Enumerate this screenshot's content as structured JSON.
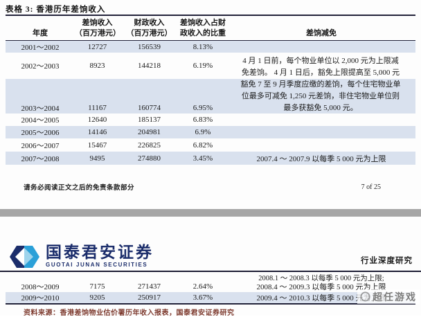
{
  "colors": {
    "shaded": "#d9e1ee",
    "band": "#a6a6a6",
    "navy": "#1b2d6b",
    "lightblue": "#2aa0d8",
    "maroon": "#7e3b2f"
  },
  "page1": {
    "title": "表格 3: 香港历年差饷收入",
    "table": {
      "headers": {
        "year": "年度",
        "rates_l1": "差饷收入",
        "rates_l2": "（百万港元）",
        "fiscal_l1": "财政收入",
        "fiscal_l2": "（百万港元）",
        "pct_l1": "差饷收入占财",
        "pct_l2": "政收入的比重",
        "concession": "差饷减免"
      },
      "rows": [
        {
          "year": "2001～2002",
          "rates": "12727",
          "fiscal": "156539",
          "pct": "8.13%",
          "concession": "",
          "shaded": true,
          "kind": ""
        },
        {
          "year": "2002～2003",
          "rates": "8923",
          "fiscal": "144218",
          "pct": "6.19%",
          "concession": "",
          "shaded": false,
          "kind": "tall"
        },
        {
          "year": "",
          "rates": "",
          "fiscal": "",
          "pct": "",
          "concession": "",
          "shaded": true,
          "kind": "spacer"
        },
        {
          "year": "2003～2004",
          "rates": "11167",
          "fiscal": "160774",
          "pct": "6.95%",
          "concession": "",
          "shaded": true,
          "kind": "r16"
        },
        {
          "year": "2004～2005",
          "rates": "12640",
          "fiscal": "185137",
          "pct": "6.83%",
          "concession": "",
          "shaded": false,
          "kind": "r18"
        },
        {
          "year": "2005～2006",
          "rates": "14146",
          "fiscal": "204981",
          "pct": "6.9%",
          "concession": "",
          "shaded": true,
          "kind": "r18"
        },
        {
          "year": "2006～2007",
          "rates": "15467",
          "fiscal": "226825",
          "pct": "6.82%",
          "concession": "",
          "shaded": false,
          "kind": "r19"
        },
        {
          "year": "2007～2008",
          "rates": "9495",
          "fiscal": "274880",
          "pct": "3.45%",
          "concession": "2007.4 ～ 2007.9 以每季 5 000 元为上限",
          "shaded": true,
          "kind": "r19"
        }
      ],
      "concession_lines": [
        "4 月 1 日前，每个物业单位以 2,000 元为上限减",
        "免差饷。 4 月 1 日后，豁免上限提高至 5,000 元",
        "豁免 7 至 9 月季度应缴的差饷，每个住宅物业单",
        "位最多可减免 1,250 元差饷，非住宅物业单位则",
        "最多获豁免 5,000 元。"
      ]
    },
    "footer": {
      "disclaimer": "请务必阅读正文之后的免责条款部分",
      "page_number": "7 of 25"
    }
  },
  "page2": {
    "brand": {
      "name_cn": "国泰君安证券",
      "name_en": "GUOTAI JUNAN SECURITIES"
    },
    "report_type": "行业深度研究",
    "rows": [
      {
        "year": "",
        "rates": "",
        "fiscal": "",
        "pct": "",
        "concession": "2008.1 ～ 2008.3 以每季 5 000 元为上限;",
        "shaded": false,
        "kind": "half"
      },
      {
        "year": "2008～2009",
        "rates": "7175",
        "fiscal": "271437",
        "pct": "2.64%",
        "concession": "2008.4 ～ 2009.3 以每季 5 000 元为上限",
        "shaded": false,
        "kind": "r16"
      },
      {
        "year": "2009～2010",
        "rates": "9205",
        "fiscal": "250917",
        "pct": "3.67%",
        "concession": "2009.4 ～ 2010.3 以每季 5 000 元为上限",
        "shaded": true,
        "kind": "r16"
      }
    ],
    "source": "资料来源：香港差饷物业估价署历年收入报表，国泰君安证券研究"
  },
  "watermark": {
    "text": "超任游戏"
  }
}
